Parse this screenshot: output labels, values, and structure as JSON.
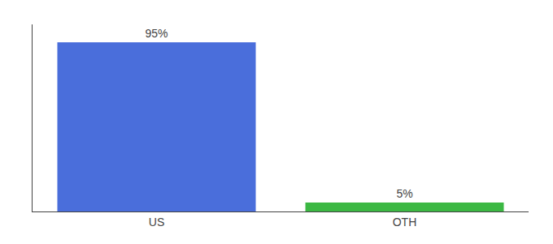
{
  "chart_data": {
    "type": "bar",
    "categories": [
      "US",
      "OTH"
    ],
    "values": [
      95,
      5
    ],
    "value_labels": [
      "95%",
      "5%"
    ],
    "colors": [
      "#4a6edb",
      "#3cb843"
    ],
    "ylim": [
      0,
      105
    ],
    "grid": false,
    "data_labels": true,
    "tick_labels": "x"
  }
}
